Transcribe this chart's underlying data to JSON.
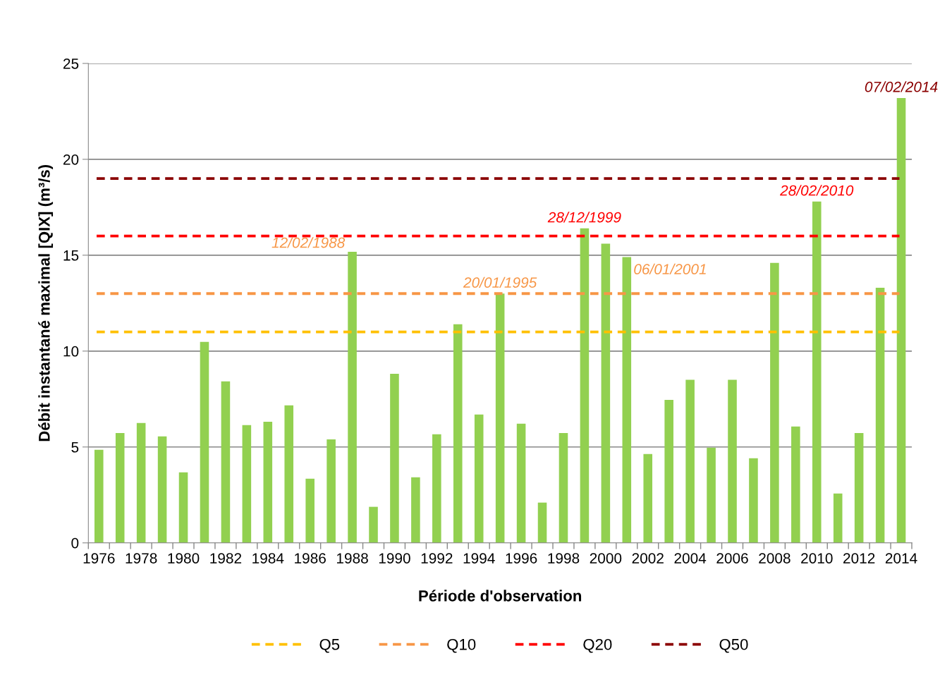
{
  "chart_data": {
    "type": "bar",
    "xlabel": "Période d'observation",
    "ylabel": "Débit instantané maximal [QIX] (m³/s)",
    "categories": [
      "1976",
      null,
      "1978",
      null,
      "1980",
      null,
      "1982",
      null,
      "1984",
      null,
      "1986",
      null,
      "1988",
      null,
      "1990",
      null,
      "1992",
      null,
      "1994",
      null,
      "1996",
      null,
      "1998",
      null,
      "2000",
      null,
      "2002",
      null,
      "2004",
      null,
      "2006",
      null,
      "2008",
      null,
      "2010",
      null,
      "2012",
      null,
      "2014"
    ],
    "values": [
      4.85,
      5.73,
      6.25,
      5.55,
      3.68,
      10.48,
      8.42,
      6.14,
      6.32,
      7.17,
      3.35,
      5.4,
      15.18,
      1.88,
      8.82,
      3.42,
      5.66,
      11.4,
      6.69,
      13.0,
      6.21,
      2.1,
      5.73,
      16.4,
      15.6,
      14.9,
      4.63,
      7.46,
      8.5,
      4.96,
      8.5,
      4.41,
      14.6,
      6.07,
      17.8,
      2.57,
      5.73,
      13.3,
      23.2
    ],
    "color": "#92d050",
    "ylim": [
      0,
      25
    ],
    "yticks": [
      0,
      5,
      10,
      15,
      20,
      25
    ],
    "grid": "y",
    "legend": "bottom",
    "ref_lines": [
      {
        "axis": "y",
        "value": 11,
        "label": "Q5",
        "color": "#ffc000",
        "line_style": "dashed"
      },
      {
        "axis": "y",
        "value": 13,
        "label": "Q10",
        "color": "#f79646",
        "line_style": "dashed"
      },
      {
        "axis": "y",
        "value": 16,
        "label": "Q20",
        "color": "#ff0000",
        "line_style": "dashed"
      },
      {
        "axis": "y",
        "value": 19,
        "label": "Q50",
        "color": "#8b0000",
        "line_style": "dashed"
      }
    ],
    "annotations": [
      {
        "text": "12/02/1988",
        "x": "1988",
        "y": 15.18
      },
      {
        "text": "20/01/1995",
        "y": 13.0
      },
      {
        "text": "28/12/1999",
        "y": 16.4
      },
      "06/01/2001",
      {
        "text": "28/02/2010",
        "x": "2010",
        "y": 17.8
      },
      {
        "text": "07/02/2014",
        "x": "2014",
        "y": 23.2
      }
    ]
  }
}
